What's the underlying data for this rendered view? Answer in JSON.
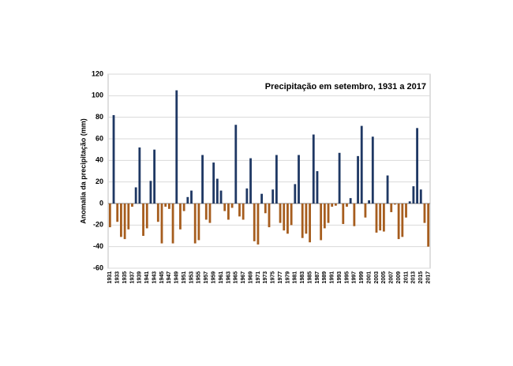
{
  "chart_data": {
    "type": "bar",
    "title": "Precipitação em setembro, 1931 a 2017",
    "y_label": "Anomalia da precipitação (mm)",
    "categories": [
      "1931",
      null,
      "1933",
      null,
      "1935",
      null,
      "1937",
      null,
      "1939",
      null,
      "1941",
      null,
      "1943",
      null,
      "1945",
      null,
      "1947",
      null,
      "1949",
      null,
      "1951",
      null,
      "1953",
      null,
      "1955",
      null,
      "1957",
      null,
      "1959",
      null,
      "1961",
      null,
      "1963",
      null,
      "1965",
      null,
      "1967",
      null,
      "1969",
      null,
      "1971",
      null,
      "1973",
      null,
      "1975",
      null,
      "1977",
      null,
      "1979",
      null,
      "1981",
      null,
      "1983",
      null,
      "1985",
      null,
      "1987",
      null,
      "1989",
      null,
      "1991",
      null,
      "1993",
      null,
      "1995",
      null,
      "1997",
      null,
      "1999",
      null,
      "2001",
      null,
      "2003",
      null,
      "2005",
      null,
      "2007",
      null,
      "2009",
      null,
      "2011",
      null,
      "2013",
      null,
      "2015",
      null,
      "2017"
    ],
    "values": [
      -22,
      82,
      -17,
      -31,
      -33,
      -24,
      -3,
      15,
      52,
      -30,
      -23,
      21,
      50,
      -17,
      -37,
      -3,
      -5,
      -37,
      105,
      -24,
      -7,
      6,
      12,
      -37,
      -34,
      45,
      -15,
      -18,
      38,
      23,
      12,
      -7,
      -15,
      -4,
      73,
      -12,
      -15,
      14,
      42,
      -35,
      -38,
      9,
      -9,
      -22,
      13,
      45,
      -18,
      -25,
      -28,
      -20,
      18,
      45,
      -32,
      -28,
      -36,
      64,
      30,
      -34,
      -23,
      -18,
      -3,
      -2,
      47,
      -19,
      -3,
      5,
      -21,
      44,
      72,
      -13,
      3,
      62,
      -27,
      -25,
      -26,
      26,
      -8,
      -1,
      -33,
      -31,
      -13,
      2,
      16,
      70,
      13,
      -18,
      -40
    ],
    "color": "#1f3864",
    "negative_color": "#a65d1e",
    "ylim": [
      -60,
      120
    ],
    "yticks": [
      -60,
      -40,
      -20,
      0,
      20,
      40,
      60,
      80,
      100,
      120
    ],
    "grid": true
  }
}
